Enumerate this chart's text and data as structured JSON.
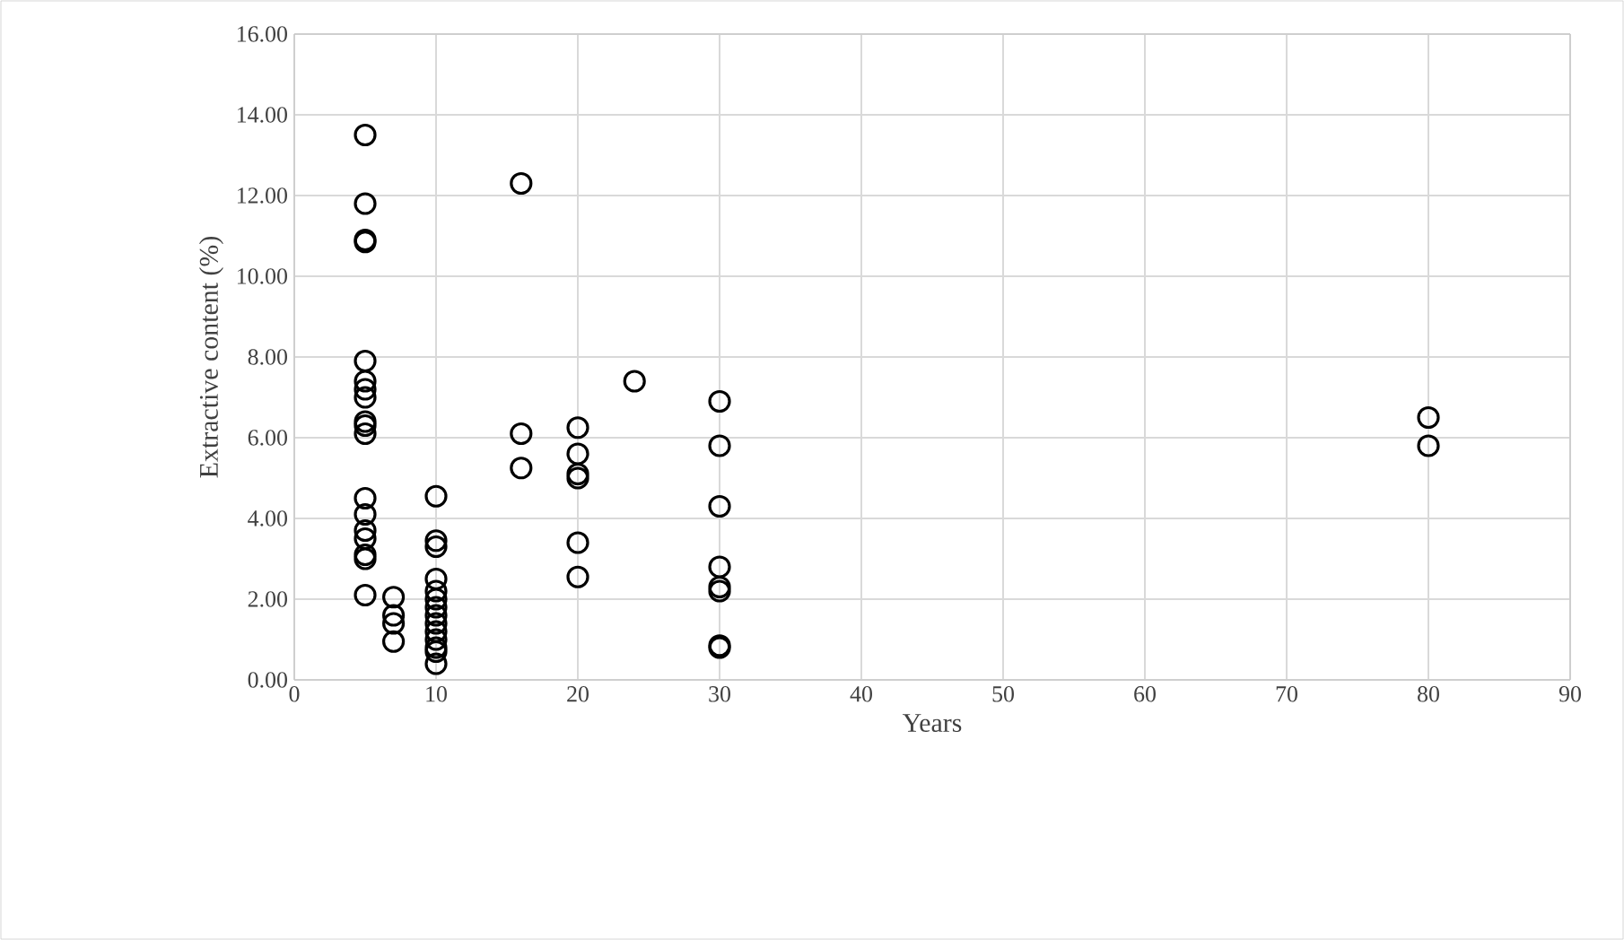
{
  "chart_data": {
    "type": "scatter",
    "xlabel": "Years",
    "ylabel": "Extractive content (%)",
    "x": [
      5,
      5,
      5,
      5,
      5,
      5,
      5,
      5,
      5,
      5,
      5,
      5,
      5,
      5,
      5,
      5,
      5,
      5,
      7,
      7,
      7,
      7,
      10,
      10,
      10,
      10,
      10,
      10,
      10,
      10,
      10,
      10,
      10,
      10,
      10,
      10,
      16,
      16,
      16,
      20,
      20,
      20,
      20,
      20,
      20,
      24,
      30,
      30,
      30,
      30,
      30,
      30,
      30,
      30,
      80,
      80
    ],
    "values": [
      13.5,
      11.8,
      10.9,
      10.85,
      7.9,
      7.4,
      7.2,
      7.0,
      6.4,
      6.3,
      6.1,
      4.5,
      4.1,
      3.7,
      3.5,
      3.1,
      3.0,
      2.1,
      2.05,
      1.6,
      1.4,
      0.95,
      4.55,
      3.45,
      3.3,
      2.5,
      2.2,
      2.0,
      1.8,
      1.6,
      1.4,
      1.2,
      1.0,
      0.8,
      0.7,
      0.4,
      12.3,
      6.1,
      5.25,
      6.25,
      5.6,
      5.1,
      5.0,
      3.4,
      2.55,
      7.4,
      6.9,
      5.8,
      4.3,
      2.8,
      2.3,
      2.2,
      0.85,
      0.8,
      6.5,
      5.8
    ],
    "color": "#000000",
    "marker": "circle",
    "grid": true,
    "xlim": [
      0,
      90
    ],
    "xticks": [
      0,
      10,
      20,
      30,
      40,
      50,
      60,
      70,
      80,
      90
    ],
    "ylim": [
      0,
      16
    ],
    "yticks": [
      {
        "value": 0,
        "label": "0.00"
      },
      {
        "value": 2,
        "label": "2.00"
      },
      {
        "value": 4,
        "label": "4.00"
      },
      {
        "value": 6,
        "label": "6.00"
      },
      {
        "value": 8,
        "label": "8.00"
      },
      {
        "value": 10,
        "label": "10.00"
      },
      {
        "value": 12,
        "label": "12.00"
      },
      {
        "value": 14,
        "label": "14.00"
      },
      {
        "value": 16,
        "label": "16.00"
      }
    ]
  }
}
